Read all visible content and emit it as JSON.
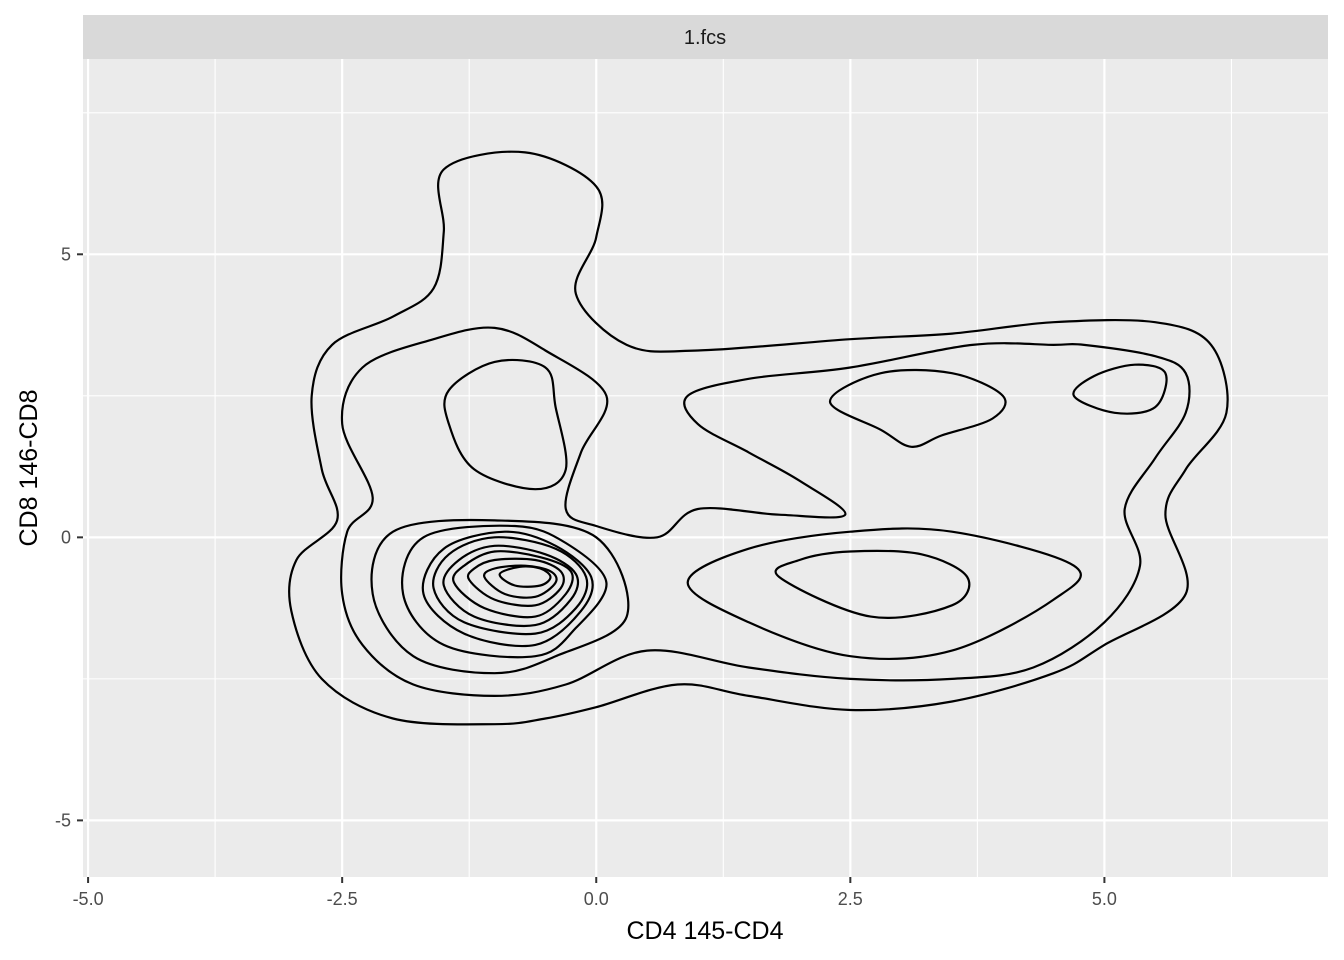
{
  "chart_data": {
    "type": "contour",
    "facet_label": "1.fcs",
    "xlabel": "CD4 145-CD4",
    "ylabel": "CD8 146-CD8",
    "xlim": [
      -5.05,
      7.2
    ],
    "ylim": [
      -6.0,
      8.45
    ],
    "x_ticks": [
      -5.0,
      -2.5,
      0.0,
      2.5,
      5.0
    ],
    "x_tick_labels": [
      "-5.0",
      "-2.5",
      "0.0",
      "2.5",
      "5.0"
    ],
    "y_ticks": [
      -5,
      0,
      5
    ],
    "y_tick_labels": [
      "-5",
      "0",
      "5"
    ],
    "grid": true,
    "colors": {
      "panel_background": "#ebebeb",
      "strip_background": "#d9d9d9",
      "grid_line": "#ffffff",
      "contour_line": "#000000"
    },
    "contours": [
      {
        "points": [
          [
            -3.0,
            -1.3
          ],
          [
            -2.7,
            -2.5
          ],
          [
            -2.0,
            -3.2
          ],
          [
            -1.0,
            -3.3
          ],
          [
            -0.5,
            -3.2
          ],
          [
            0.0,
            -3.0
          ],
          [
            0.8,
            -2.6
          ],
          [
            1.5,
            -2.8
          ],
          [
            2.5,
            -3.05
          ],
          [
            3.5,
            -2.9
          ],
          [
            4.5,
            -2.4
          ],
          [
            5.0,
            -1.9
          ],
          [
            5.8,
            -1.0
          ],
          [
            5.6,
            0.4
          ],
          [
            5.8,
            1.2
          ],
          [
            6.2,
            2.2
          ],
          [
            6.05,
            3.4
          ],
          [
            5.5,
            3.8
          ],
          [
            4.5,
            3.8
          ],
          [
            3.5,
            3.6
          ],
          [
            2.5,
            3.5
          ],
          [
            1.0,
            3.3
          ],
          [
            0.3,
            3.4
          ],
          [
            -0.2,
            4.3
          ],
          [
            0.0,
            5.3
          ],
          [
            0.0,
            6.2
          ],
          [
            -0.7,
            6.8
          ],
          [
            -1.5,
            6.5
          ],
          [
            -1.5,
            5.4
          ],
          [
            -1.6,
            4.4
          ],
          [
            -2.0,
            3.9
          ],
          [
            -2.6,
            3.4
          ],
          [
            -2.8,
            2.5
          ],
          [
            -2.7,
            1.2
          ],
          [
            -2.55,
            0.3
          ],
          [
            -2.95,
            -0.4
          ]
        ]
      },
      {
        "points": [
          [
            -2.5,
            -1.0
          ],
          [
            -2.3,
            -1.9
          ],
          [
            -1.8,
            -2.6
          ],
          [
            -1.0,
            -2.8
          ],
          [
            -0.3,
            -2.6
          ],
          [
            0.5,
            -2.0
          ],
          [
            1.5,
            -2.3
          ],
          [
            2.5,
            -2.5
          ],
          [
            3.5,
            -2.5
          ],
          [
            4.3,
            -2.3
          ],
          [
            5.0,
            -1.5
          ],
          [
            5.35,
            -0.5
          ],
          [
            5.2,
            0.5
          ],
          [
            5.5,
            1.4
          ],
          [
            5.8,
            2.2
          ],
          [
            5.8,
            2.9
          ],
          [
            5.5,
            3.2
          ],
          [
            4.8,
            3.4
          ],
          [
            4.5,
            3.4
          ],
          [
            3.7,
            3.4
          ],
          [
            2.5,
            3.0
          ],
          [
            1.5,
            2.8
          ],
          [
            0.9,
            2.5
          ],
          [
            1.0,
            2.0
          ],
          [
            1.5,
            1.5
          ],
          [
            2.0,
            1.0
          ],
          [
            2.45,
            0.4
          ],
          [
            1.8,
            0.4
          ],
          [
            1.0,
            0.5
          ],
          [
            0.6,
            0.0
          ],
          [
            0.0,
            0.2
          ],
          [
            -0.3,
            0.5
          ],
          [
            -0.15,
            1.5
          ],
          [
            0.1,
            2.5
          ],
          [
            -0.5,
            3.3
          ],
          [
            -1.0,
            3.7
          ],
          [
            -1.6,
            3.5
          ],
          [
            -2.3,
            3.0
          ],
          [
            -2.5,
            2.0
          ],
          [
            -2.2,
            0.7
          ],
          [
            -2.45,
            0.1
          ]
        ]
      },
      {
        "points": [
          [
            -2.2,
            -1.0
          ],
          [
            -1.8,
            -2.1
          ],
          [
            -1.0,
            -2.4
          ],
          [
            -0.4,
            -2.1
          ],
          [
            0.3,
            -1.4
          ],
          [
            0.0,
            0.0
          ],
          [
            -1.0,
            0.3
          ],
          [
            -2.0,
            0.1
          ]
        ]
      },
      {
        "points": [
          [
            -1.9,
            -1.0
          ],
          [
            -1.5,
            -1.9
          ],
          [
            -0.6,
            -2.1
          ],
          [
            -0.2,
            -1.6
          ],
          [
            0.1,
            -0.8
          ],
          [
            -0.3,
            -0.1
          ],
          [
            -0.8,
            0.2
          ],
          [
            -1.7,
            0.0
          ]
        ]
      },
      {
        "points": [
          [
            -1.7,
            -1.0
          ],
          [
            -1.3,
            -1.7
          ],
          [
            -0.6,
            -1.9
          ],
          [
            -0.15,
            -1.3
          ],
          [
            -0.05,
            -0.7
          ],
          [
            -0.4,
            -0.15
          ],
          [
            -0.9,
            0.1
          ],
          [
            -1.5,
            -0.2
          ]
        ]
      },
      {
        "points": [
          [
            -1.6,
            -0.9
          ],
          [
            -1.3,
            -1.5
          ],
          [
            -0.6,
            -1.7
          ],
          [
            -0.2,
            -1.25
          ],
          [
            -0.1,
            -0.7
          ],
          [
            -0.4,
            -0.2
          ],
          [
            -1.0,
            0.0
          ],
          [
            -1.45,
            -0.3
          ]
        ]
      },
      {
        "points": [
          [
            -1.5,
            -0.85
          ],
          [
            -1.2,
            -1.4
          ],
          [
            -0.6,
            -1.55
          ],
          [
            -0.25,
            -1.1
          ],
          [
            -0.2,
            -0.65
          ],
          [
            -0.5,
            -0.3
          ],
          [
            -1.0,
            -0.15
          ],
          [
            -1.35,
            -0.4
          ]
        ]
      },
      {
        "points": [
          [
            -1.4,
            -0.8
          ],
          [
            -1.1,
            -1.25
          ],
          [
            -0.6,
            -1.4
          ],
          [
            -0.3,
            -1.0
          ],
          [
            -0.25,
            -0.6
          ],
          [
            -0.55,
            -0.35
          ],
          [
            -1.0,
            -0.25
          ],
          [
            -1.3,
            -0.5
          ]
        ]
      },
      {
        "points": [
          [
            -1.25,
            -0.75
          ],
          [
            -1.0,
            -1.1
          ],
          [
            -0.6,
            -1.2
          ],
          [
            -0.35,
            -0.9
          ],
          [
            -0.35,
            -0.6
          ],
          [
            -0.6,
            -0.4
          ],
          [
            -1.0,
            -0.4
          ],
          [
            -1.2,
            -0.55
          ]
        ]
      },
      {
        "points": [
          [
            -1.1,
            -0.7
          ],
          [
            -0.9,
            -1.0
          ],
          [
            -0.6,
            -1.05
          ],
          [
            -0.4,
            -0.8
          ],
          [
            -0.45,
            -0.6
          ],
          [
            -0.7,
            -0.5
          ],
          [
            -1.0,
            -0.55
          ]
        ]
      },
      {
        "points": [
          [
            -0.95,
            -0.65
          ],
          [
            -0.8,
            -0.85
          ],
          [
            -0.55,
            -0.85
          ],
          [
            -0.45,
            -0.7
          ],
          [
            -0.55,
            -0.55
          ],
          [
            -0.75,
            -0.52
          ]
        ]
      },
      {
        "points": [
          [
            0.9,
            -0.8
          ],
          [
            1.5,
            -1.5
          ],
          [
            2.5,
            -2.1
          ],
          [
            3.5,
            -2.0
          ],
          [
            4.5,
            -1.1
          ],
          [
            4.7,
            -0.5
          ],
          [
            3.5,
            0.1
          ],
          [
            2.5,
            0.1
          ],
          [
            1.5,
            -0.2
          ]
        ]
      },
      {
        "points": [
          [
            1.8,
            -0.7
          ],
          [
            2.7,
            -1.4
          ],
          [
            3.5,
            -1.2
          ],
          [
            3.65,
            -0.7
          ],
          [
            3.2,
            -0.3
          ],
          [
            2.5,
            -0.25
          ],
          [
            2.0,
            -0.4
          ]
        ]
      },
      {
        "points": [
          [
            -1.45,
            2.0
          ],
          [
            -1.2,
            1.2
          ],
          [
            -0.6,
            0.85
          ],
          [
            -0.3,
            1.2
          ],
          [
            -0.4,
            2.3
          ],
          [
            -0.5,
            3.0
          ],
          [
            -1.0,
            3.1
          ],
          [
            -1.45,
            2.6
          ]
        ]
      },
      {
        "points": [
          [
            2.3,
            2.4
          ],
          [
            2.8,
            1.9
          ],
          [
            3.1,
            1.6
          ],
          [
            3.4,
            1.8
          ],
          [
            3.9,
            2.1
          ],
          [
            4.0,
            2.5
          ],
          [
            3.5,
            2.9
          ],
          [
            2.8,
            2.9
          ]
        ]
      },
      {
        "points": [
          [
            4.7,
            2.5
          ],
          [
            5.1,
            2.2
          ],
          [
            5.5,
            2.3
          ],
          [
            5.6,
            2.9
          ],
          [
            5.3,
            3.05
          ],
          [
            4.9,
            2.85
          ]
        ]
      }
    ]
  }
}
